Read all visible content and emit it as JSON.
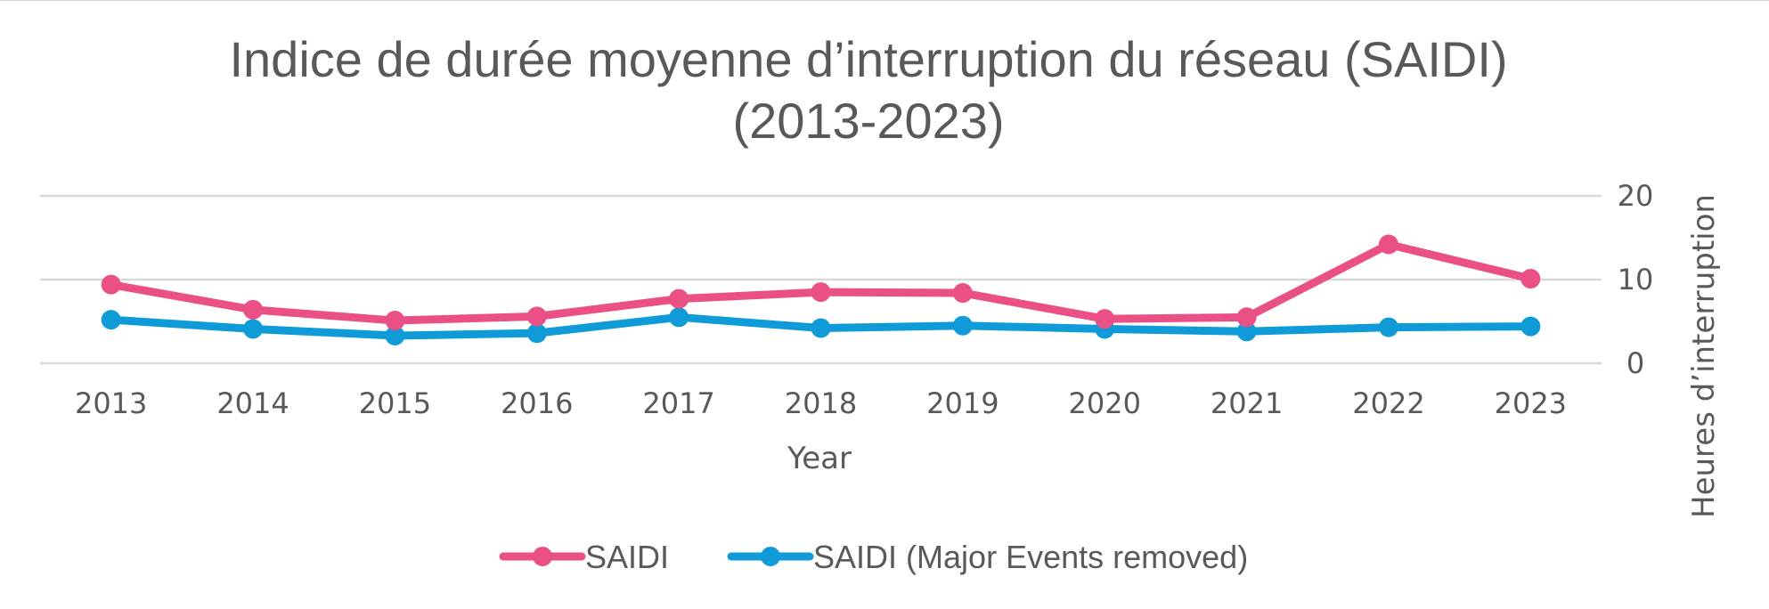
{
  "chart_data": {
    "type": "line",
    "title_line1": "Indice de durée moyenne d’interruption du réseau (SAIDI)",
    "title_line2": "(2013-2023)",
    "xlabel": "Year",
    "ylabel": "Heures d’interruption",
    "categories": [
      "2013",
      "2014",
      "2015",
      "2016",
      "2017",
      "2018",
      "2019",
      "2020",
      "2021",
      "2022",
      "2023"
    ],
    "y_ticks": [
      "0",
      "10",
      "20"
    ],
    "ylim": [
      0,
      20
    ],
    "y_axis_side": "right",
    "grid": true,
    "legend_position": "bottom",
    "series": [
      {
        "name": "SAIDI",
        "color": "#ea4f86",
        "values": [
          9.4,
          6.4,
          5.1,
          5.6,
          7.7,
          8.5,
          8.4,
          5.3,
          5.5,
          14.2,
          10.1
        ]
      },
      {
        "name": "SAIDI (Major Events removed)",
        "color": "#0f9bd7",
        "values": [
          5.2,
          4.1,
          3.3,
          3.6,
          5.5,
          4.2,
          4.5,
          4.1,
          3.8,
          4.3,
          4.4
        ]
      }
    ]
  }
}
